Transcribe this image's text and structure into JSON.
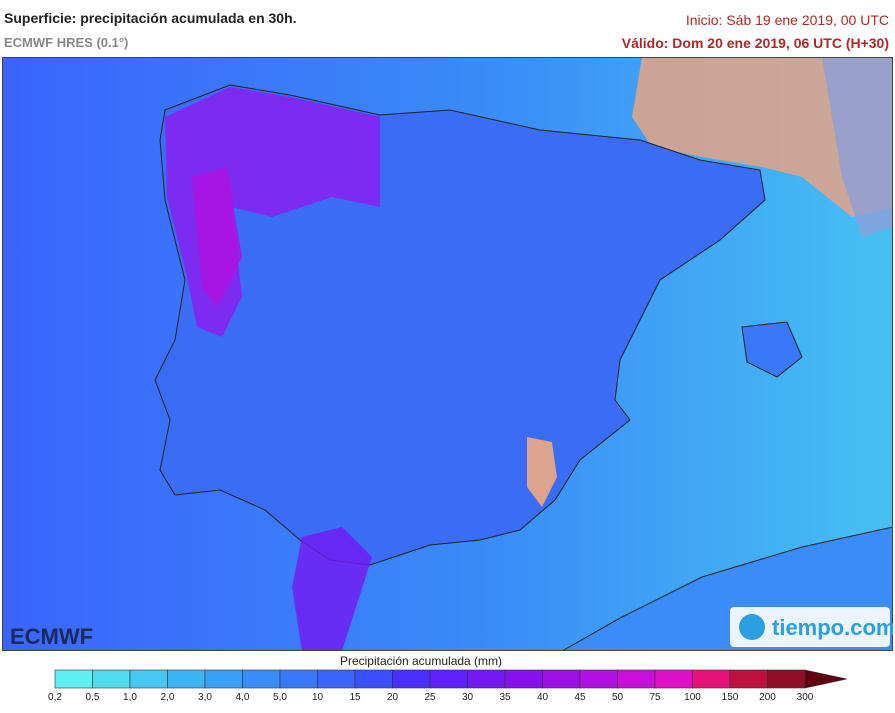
{
  "header": {
    "title": "Superficie: precipitación acumulada en 30h.",
    "model": "ECMWF HRES (0.1°)",
    "init": "Inicio: Sáb 19 ene 2019, 00 UTC",
    "valid": "Válido: Dom 20 ene 2019, 06 UTC (H+30)"
  },
  "logos": {
    "left": "ECMWF",
    "right": "tiempo.com"
  },
  "legend": {
    "title": "Precipitación acumulada (mm)",
    "ticks": [
      "0,2",
      "0,5",
      "1,0",
      "2,0",
      "3,0",
      "4,0",
      "5,0",
      "10",
      "15",
      "20",
      "25",
      "30",
      "35",
      "40",
      "45",
      "50",
      "75",
      "100",
      "150",
      "200",
      "300"
    ],
    "colors": [
      "#5ef0f2",
      "#50dcf0",
      "#46c8f2",
      "#3cb4f4",
      "#3aa0f6",
      "#3a8cf8",
      "#3a78fa",
      "#3a64fc",
      "#3a50ff",
      "#4a30ff",
      "#6020ff",
      "#7418f4",
      "#8810ee",
      "#9c10e8",
      "#b010e0",
      "#c810d8",
      "#e010c8",
      "#e8107a",
      "#c01040",
      "#901028",
      "#600010"
    ]
  }
}
